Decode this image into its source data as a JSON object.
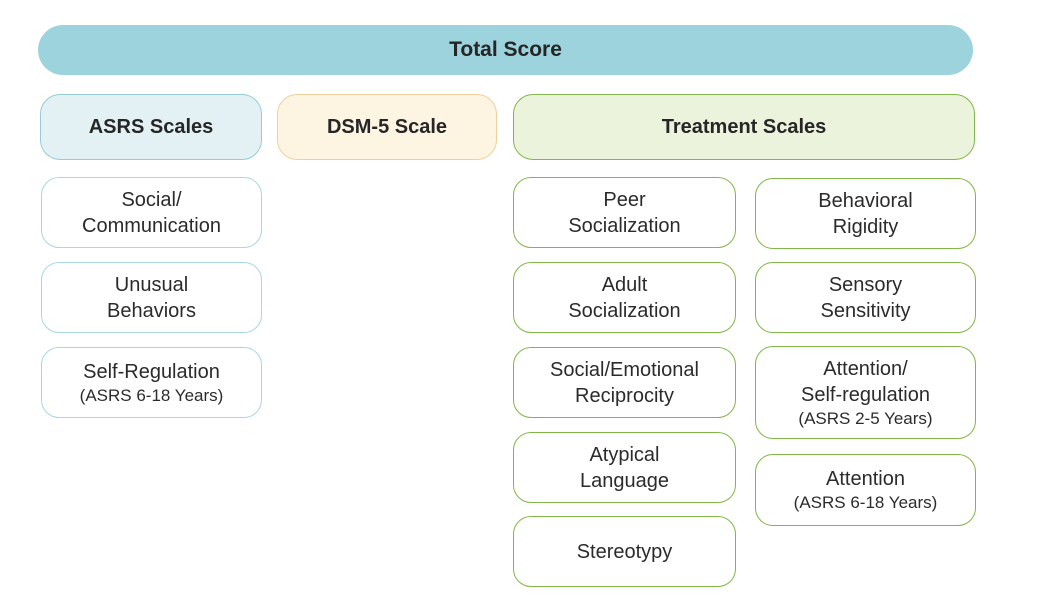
{
  "palette": {
    "total_bar_fill": "#9dd3dd",
    "asrs_header_fill": "#e3f1f4",
    "asrs_header_border": "#94ccd6",
    "dsm_header_fill": "#fdf4e2",
    "dsm_header_border": "#f1cf9b",
    "treatment_header_fill": "#ecf3dd",
    "treatment_green_border": "#82b649",
    "asrs_item_border": "#a9d7de",
    "text": "#2b2b2b"
  },
  "total_score": {
    "label": "Total Score"
  },
  "groups": {
    "asrs": {
      "header": "ASRS Scales",
      "items": [
        {
          "title": "Social/\nCommunication"
        },
        {
          "title": "Unusual\nBehaviors"
        },
        {
          "title": "Self-Regulation",
          "sub": "(ASRS 6-18 Years)"
        }
      ]
    },
    "dsm": {
      "header": "DSM-5 Scale"
    },
    "treatment": {
      "header": "Treatment Scales",
      "col1": [
        {
          "title": "Peer\nSocialization"
        },
        {
          "title": "Adult\nSocialization"
        },
        {
          "title": "Social/Emotional\nReciprocity"
        },
        {
          "title": "Atypical\nLanguage"
        },
        {
          "title": "Stereotypy"
        }
      ],
      "col2": [
        {
          "title": "Behavioral\nRigidity"
        },
        {
          "title": "Sensory\nSensitivity"
        },
        {
          "title": "Attention/\nSelf-regulation",
          "sub": "(ASRS 2-5 Years)"
        },
        {
          "title": "Attention",
          "sub": "(ASRS 6-18 Years)"
        }
      ]
    }
  }
}
